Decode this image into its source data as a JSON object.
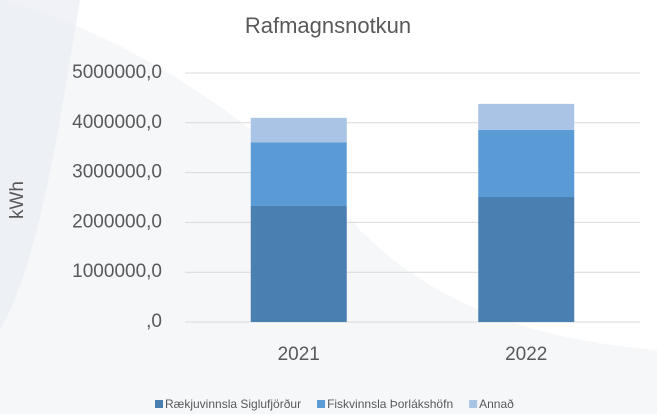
{
  "chart_data": {
    "type": "stacked_bar",
    "title": "Rafmagnsnotkun",
    "y_label": "kWh",
    "categories": [
      "2021",
      "2022"
    ],
    "series": [
      {
        "name": "Rækjuvinnsla Siglufjörður",
        "color": "#4a7fb1",
        "values": [
          2330000,
          2510000
        ]
      },
      {
        "name": "Fiskvinnsla Þorlákshöfn",
        "color": "#5b9bd5",
        "values": [
          1280000,
          1350000
        ]
      },
      {
        "name": "Annað",
        "color": "#aac4e6",
        "values": [
          490000,
          520000
        ]
      }
    ],
    "ylim": [
      0,
      5000000
    ],
    "yticks": [
      {
        "value": 0,
        "label": ",0"
      },
      {
        "value": 1000000,
        "label": "1000000,0"
      },
      {
        "value": 2000000,
        "label": "2000000,0"
      },
      {
        "value": 3000000,
        "label": "3000000,0"
      },
      {
        "value": 4000000,
        "label": "4000000,0"
      },
      {
        "value": 5000000,
        "label": "5000000,0"
      }
    ],
    "grid": true,
    "legend": "bottom"
  }
}
